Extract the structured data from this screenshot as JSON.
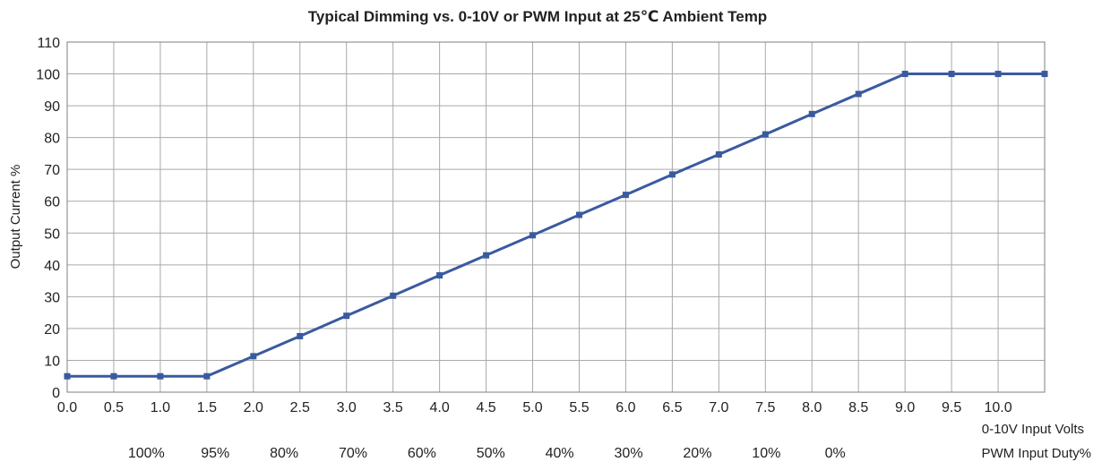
{
  "chart_data": {
    "type": "line",
    "title": "Typical Dimming vs. 0-10V or PWM Input at 25℃ Ambient Temp",
    "ylabel": "Output Current %",
    "xlabel": "0-10V Input Volts",
    "xlabel2": "PWM Input Duty%",
    "ylim": [
      0,
      110
    ],
    "yticks": [
      "0",
      "10",
      "20",
      "30",
      "40",
      "50",
      "60",
      "70",
      "80",
      "90",
      "100",
      "110"
    ],
    "xlim": [
      0,
      10.5
    ],
    "xticks": [
      "0.0",
      "0.5",
      "1.0",
      "1.5",
      "2.0",
      "2.5",
      "3.0",
      "3.5",
      "4.0",
      "4.5",
      "5.0",
      "5.5",
      "6.0",
      "6.5",
      "7.0",
      "7.5",
      "8.0",
      "8.5",
      "9.0",
      "9.5",
      "10.0"
    ],
    "pwm_labels": [
      {
        "x": 1.0,
        "label": "100%"
      },
      {
        "x": 1.5,
        "label": "95%"
      },
      {
        "x": 2.0,
        "label": "80%"
      },
      {
        "x": 2.5,
        "label": "70%"
      },
      {
        "x": 3.0,
        "label": "60%"
      },
      {
        "x": 3.5,
        "label": "50%"
      },
      {
        "x": 4.0,
        "label": "40%"
      },
      {
        "x": 4.5,
        "label": "30%"
      },
      {
        "x": 5.0,
        "label": "20%"
      },
      {
        "x": 5.5,
        "label": "10%"
      },
      {
        "x": 6.0,
        "label": "0%"
      }
    ],
    "grid": true,
    "series": [
      {
        "color": "#3a5aa0",
        "x": [
          0.0,
          0.5,
          1.0,
          1.5,
          2.0,
          2.5,
          3.0,
          3.5,
          4.0,
          4.5,
          5.0,
          5.5,
          6.0,
          6.5,
          7.0,
          7.5,
          8.0,
          8.5,
          9.0,
          9.5,
          10.0,
          10.5
        ],
        "y": [
          5,
          5,
          5,
          5,
          11.3,
          17.6,
          24.0,
          30.3,
          36.7,
          43.0,
          49.3,
          55.7,
          62.0,
          68.4,
          74.7,
          81.0,
          87.4,
          93.7,
          100,
          100,
          100,
          100
        ]
      }
    ]
  }
}
